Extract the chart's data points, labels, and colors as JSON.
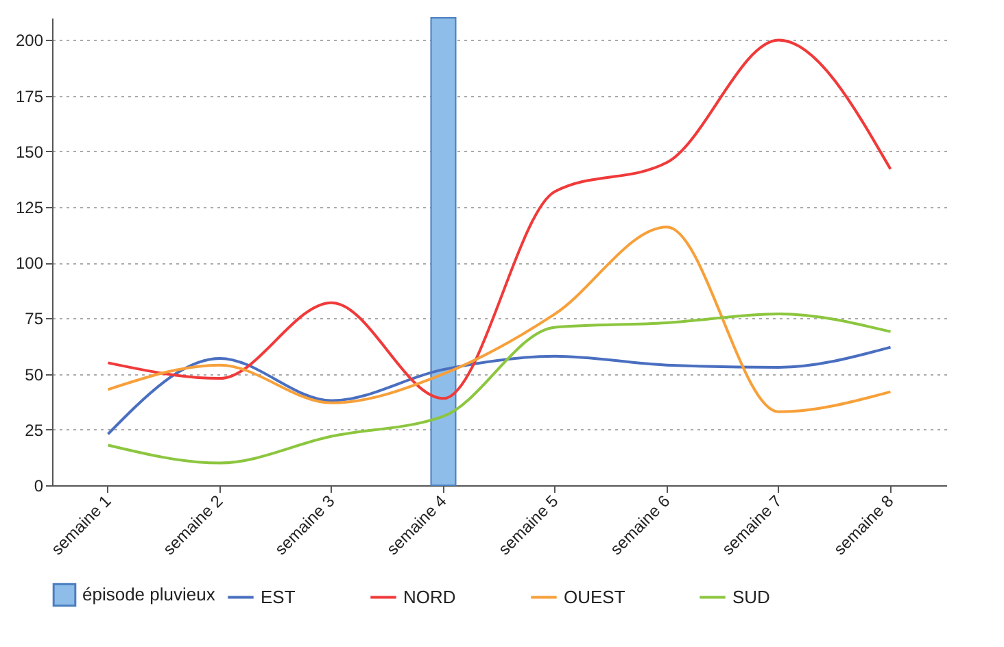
{
  "chart_data": {
    "type": "line",
    "categories": [
      "semaine 1",
      "semaine 2",
      "semaine 3",
      "semaine 4",
      "semaine 5",
      "semaine 6",
      "semaine 7",
      "semaine 8"
    ],
    "series": [
      {
        "name": "épisode pluvieux",
        "type": "bar",
        "color": "#8dbde8",
        "values": [
          null,
          null,
          null,
          210,
          null,
          null,
          null,
          null
        ]
      },
      {
        "name": "EST",
        "color": "#4a6fc0",
        "values": [
          23,
          57,
          38,
          52,
          58,
          54,
          53,
          62
        ]
      },
      {
        "name": "NORD",
        "color": "#f03a3a",
        "values": [
          55,
          48,
          82,
          39,
          132,
          145,
          200,
          142
        ]
      },
      {
        "name": "OUEST",
        "color": "#f7a03a",
        "values": [
          43,
          54,
          37,
          50,
          77,
          116,
          33,
          42
        ]
      },
      {
        "name": "SUD",
        "color": "#8cc63f",
        "values": [
          18,
          10,
          22,
          31,
          71,
          73,
          77,
          69
        ]
      }
    ],
    "ylim": [
      0,
      210
    ],
    "yticks": [
      0,
      25,
      50,
      75,
      100,
      125,
      150,
      175,
      200
    ],
    "grid": "y",
    "legend": "bottom",
    "line_style": "solid"
  }
}
